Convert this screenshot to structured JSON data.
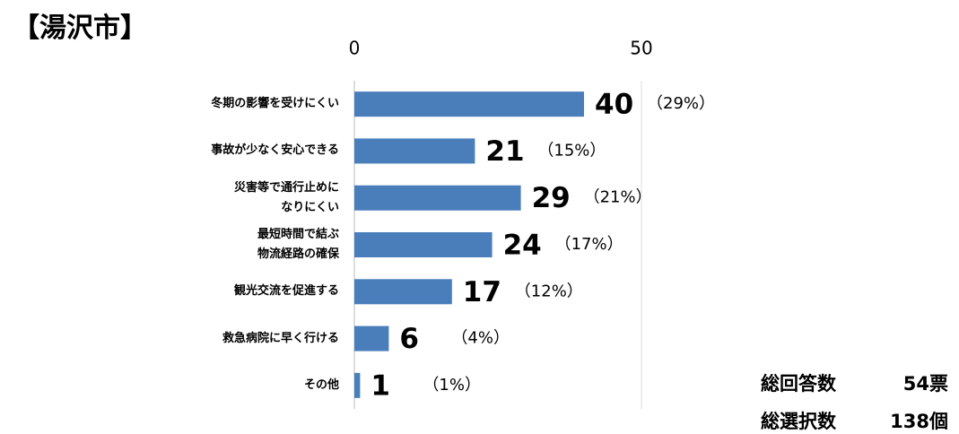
{
  "chart_data": {
    "type": "bar",
    "orientation": "horizontal",
    "title": "【湯沢市】",
    "categories": [
      "冬期の影響を受けにくい",
      "事故が少なく安心できる",
      "災害等で通行止めに\nなりにくい",
      "最短時間で結ぶ\n物流経路の確保",
      "観光交流を促進する",
      "救急病院に早く行ける",
      "その他"
    ],
    "values": [
      40,
      21,
      29,
      24,
      17,
      6,
      1
    ],
    "percents": [
      29,
      15,
      21,
      17,
      12,
      4,
      1
    ],
    "percent_labels": [
      "（29%）",
      "（15%）",
      "（21%）",
      "（17%）",
      "（12%）",
      "（4%）",
      "（1%）"
    ],
    "color": "#4a7ebb",
    "xlim": [
      0,
      50
    ],
    "xticks": [
      0,
      50
    ],
    "grid": true,
    "annotations": [
      {
        "label": "総回答数",
        "value": "54票"
      },
      {
        "label": "総選択数",
        "value": "138個"
      }
    ]
  }
}
